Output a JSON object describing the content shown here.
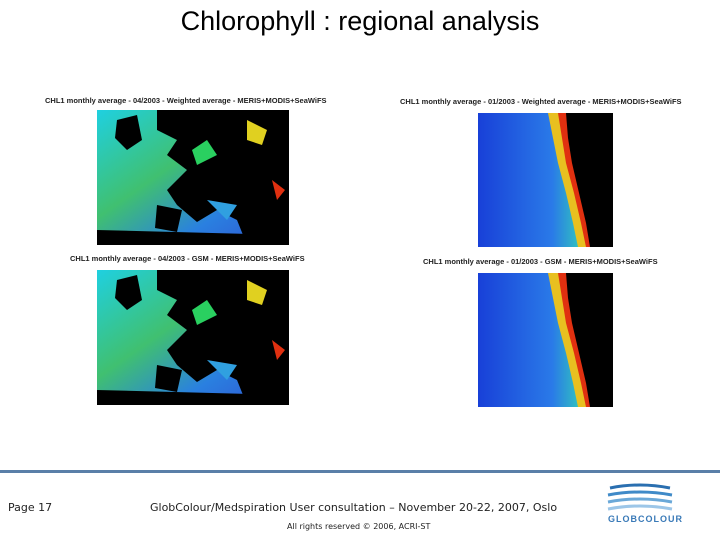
{
  "header": {
    "title": "Chlorophyll : regional analysis"
  },
  "panels": [
    {
      "caption": "CHL1 monthly average - 04/2003 - Weighted average - MERIS+MODIS+SeaWiFS"
    },
    {
      "caption": "CHL1 monthly average - 01/2003 - Weighted average - MERIS+MODIS+SeaWiFS"
    },
    {
      "caption": "CHL1 monthly average - 04/2003 - GSM - MERIS+MODIS+SeaWiFS"
    },
    {
      "caption": "CHL1 monthly average - 01/2003 - GSM - MERIS+MODIS+SeaWiFS"
    }
  ],
  "footer": {
    "page": "Page 17",
    "event": "GlobColour/Medspiration User consultation – November 20-22, 2007, Oslo",
    "copyright": "All rights reserved © 2006, ACRI-ST",
    "logo": "GLOBCOLOUR"
  }
}
